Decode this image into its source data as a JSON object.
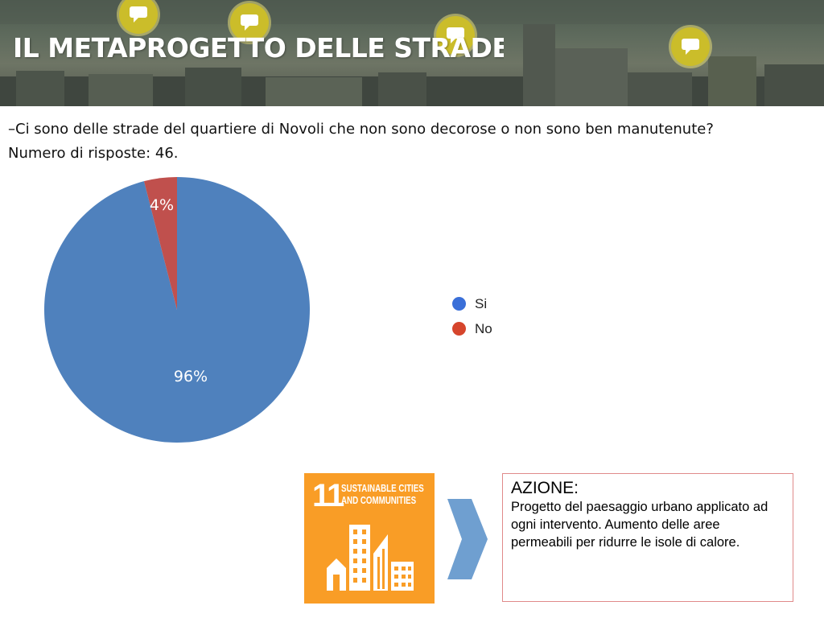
{
  "banner": {
    "title": "IL METAPROGETTO DELLE STRADE"
  },
  "question": {
    "text": "–Ci sono delle strade del quartiere di Novoli che non sono decorose o non sono ben manutenute? Numero di risposte: 46."
  },
  "colors": {
    "si": "#4f81bd",
    "no": "#c0504d",
    "legend_si": "#3a6fd8",
    "legend_no": "#d6452c",
    "sdg_orange": "#f99d26",
    "arrow_blue": "#6f9fd0"
  },
  "chart_data": {
    "type": "pie",
    "title": "",
    "series": [
      {
        "name": "Si",
        "value": 96,
        "label": "96%"
      },
      {
        "name": "No",
        "value": 4,
        "label": "4%"
      }
    ],
    "legend": {
      "placement": "right",
      "entries": [
        "Si",
        "No"
      ]
    }
  },
  "sdg": {
    "number": "11",
    "caption_line1": "SUSTAINABLE CITIES",
    "caption_line2": "AND COMMUNITIES",
    "icon": "city-buildings-icon"
  },
  "arrow": {
    "icon": "chevron-right-icon"
  },
  "azione": {
    "title": "AZIONE:",
    "body": "Progetto del paesaggio urbano applicato ad ogni intervento. Aumento delle aree permeabili per ridurre le isole di calore."
  }
}
